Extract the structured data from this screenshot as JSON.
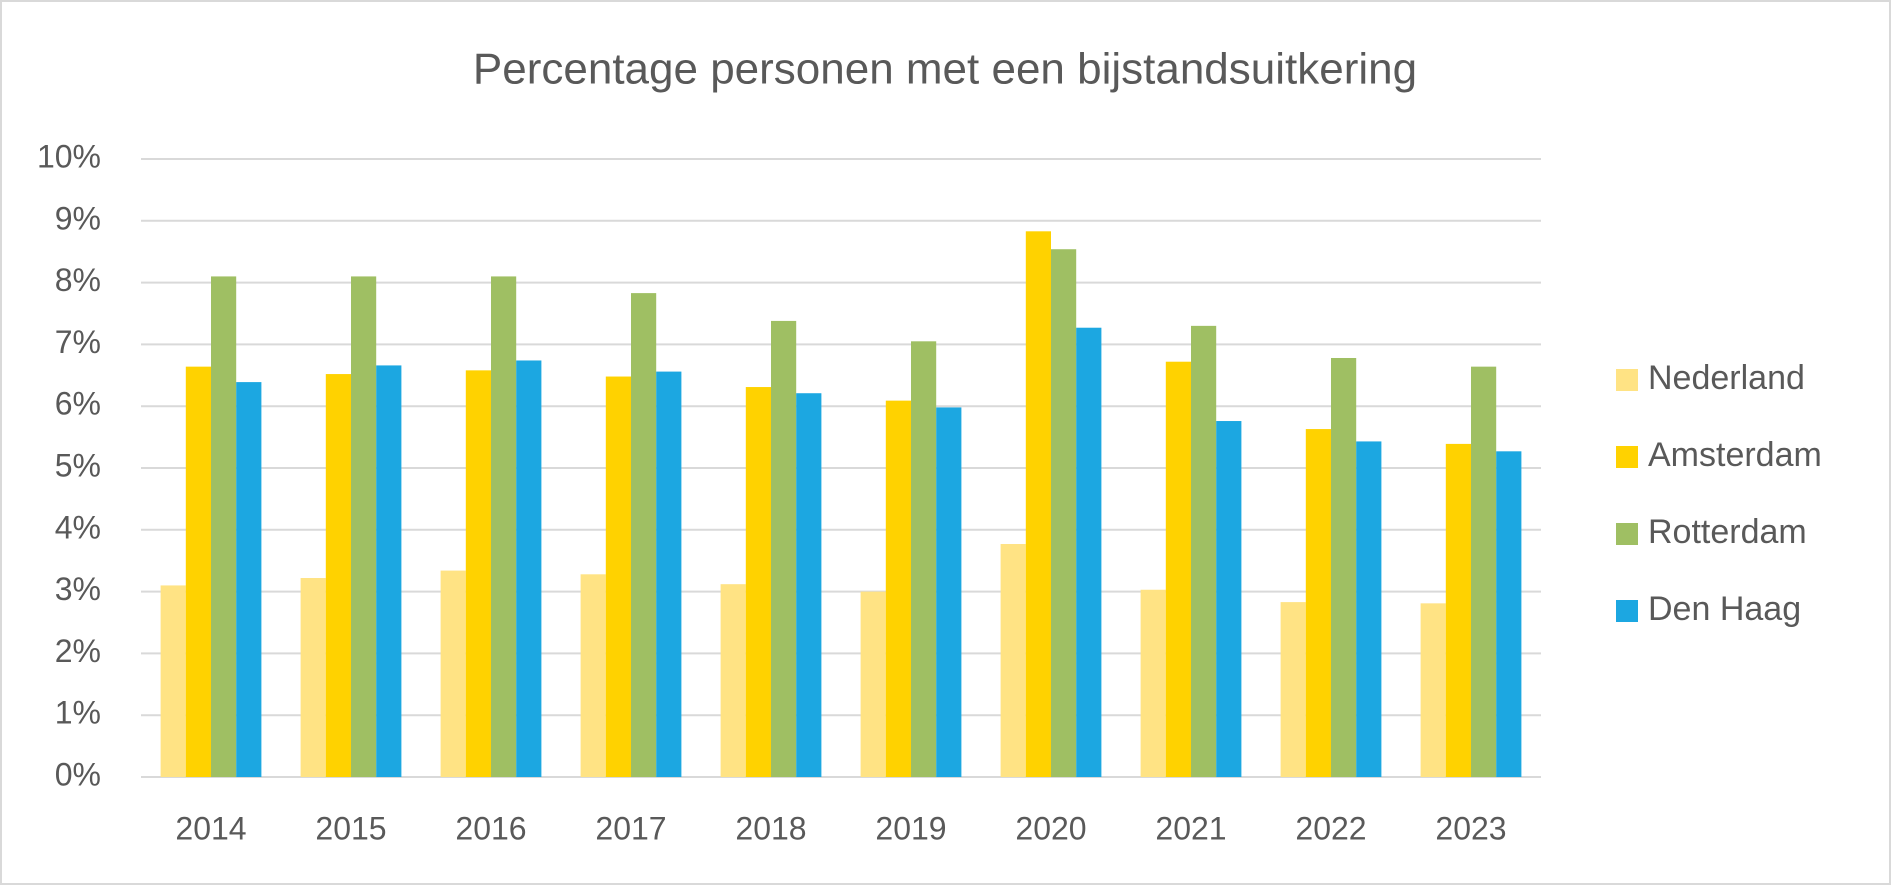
{
  "chart_data": {
    "type": "bar",
    "title": "Percentage personen met een bijstandsuitkering",
    "categories": [
      "2014",
      "2015",
      "2016",
      "2017",
      "2018",
      "2019",
      "2020",
      "2021",
      "2022",
      "2023"
    ],
    "series": [
      {
        "name": "Nederland",
        "color": "#FFE384",
        "values": [
          3.1,
          3.22,
          3.34,
          3.28,
          3.12,
          3.0,
          3.77,
          3.03,
          2.83,
          2.81
        ]
      },
      {
        "name": "Amsterdam",
        "color": "#FFD200",
        "values": [
          6.64,
          6.52,
          6.58,
          6.48,
          6.31,
          6.09,
          8.83,
          6.72,
          5.63,
          5.39
        ]
      },
      {
        "name": "Rotterdam",
        "color": "#9FBF63",
        "values": [
          8.1,
          8.1,
          8.1,
          7.83,
          7.38,
          7.05,
          8.54,
          7.3,
          6.78,
          6.64
        ]
      },
      {
        "name": "Den Haag",
        "color": "#1CA7E1",
        "values": [
          6.39,
          6.66,
          6.74,
          6.56,
          6.21,
          5.98,
          7.27,
          5.76,
          5.43,
          5.27
        ]
      }
    ],
    "ylim": [
      0,
      10
    ],
    "yticks": [
      {
        "value": 0,
        "label": "0%"
      },
      {
        "value": 1,
        "label": "1%"
      },
      {
        "value": 2,
        "label": "2%"
      },
      {
        "value": 3,
        "label": "3%"
      },
      {
        "value": 4,
        "label": "4%"
      },
      {
        "value": 5,
        "label": "5%"
      },
      {
        "value": 6,
        "label": "6%"
      },
      {
        "value": 7,
        "label": "7%"
      },
      {
        "value": 8,
        "label": "8%"
      },
      {
        "value": 9,
        "label": "9%"
      },
      {
        "value": 10,
        "label": "10%"
      }
    ],
    "grid": true,
    "legend": "right"
  }
}
